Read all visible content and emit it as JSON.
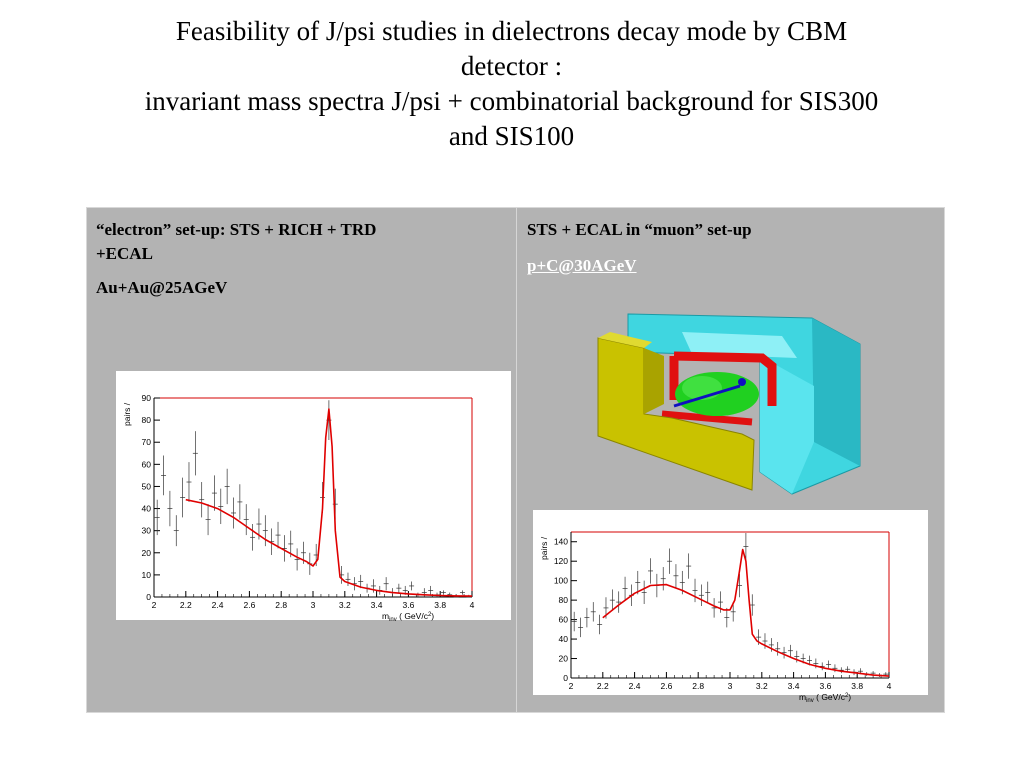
{
  "title": {
    "line1": "Feasibility of J/psi studies in dielectrons decay mode   by CBM",
    "line2": "detector :",
    "line3": "invariant mass spectra J/psi + combinatorial background for SIS300",
    "line4": "and SIS100"
  },
  "left_cell": {
    "heading_line1": "“electron” set-up: STS + RICH + TRD",
    "heading_line2": "+ECAL",
    "reaction": "Au+Au@25AGeV"
  },
  "right_cell": {
    "heading": "STS + ECAL in “muon” set-up",
    "reaction_link": "p+C@30AGeV"
  },
  "colors": {
    "cell_bg": "#b3b3b3",
    "fit_curve": "#e00000",
    "frame": "#d40000",
    "points": "#333333",
    "detector_cyan": "#3fd6e0",
    "detector_yellow": "#c9c200",
    "detector_red": "#e01010",
    "detector_green": "#20d020",
    "detector_blue": "#1010c0"
  },
  "chart_data": [
    {
      "type": "scatter",
      "ylabel": "pairs /",
      "xlabel_main": "m",
      "xlabel_sub": "inv",
      "xlabel_unit": " ( GeV/c",
      "xlabel_sup": "2",
      "xlabel_end": ")",
      "xlim": [
        2,
        4
      ],
      "ylim": [
        0,
        90
      ],
      "xticks": [
        "2",
        "2.2",
        "2.4",
        "2.6",
        "2.8",
        "3",
        "3.2",
        "3.4",
        "3.6",
        "3.8",
        "4"
      ],
      "yticks": [
        "0",
        "10",
        "20",
        "30",
        "40",
        "50",
        "60",
        "70",
        "80",
        "90"
      ],
      "fit": {
        "x": [
          2.2,
          2.3,
          2.4,
          2.5,
          2.6,
          2.7,
          2.8,
          2.9,
          2.96,
          3.0,
          3.03,
          3.06,
          3.08,
          3.1,
          3.12,
          3.14,
          3.17,
          3.2,
          3.3,
          3.4,
          3.5,
          3.6,
          3.7,
          3.8,
          3.9,
          4.0
        ],
        "y": [
          44,
          42.5,
          40,
          36,
          31,
          26,
          22,
          18,
          16,
          14,
          17,
          40,
          72,
          85,
          68,
          30,
          9,
          7,
          4.5,
          3,
          2,
          1.4,
          1,
          0.7,
          0.5,
          0.4
        ]
      },
      "points": {
        "x": [
          2.02,
          2.06,
          2.1,
          2.14,
          2.18,
          2.22,
          2.26,
          2.3,
          2.34,
          2.38,
          2.42,
          2.46,
          2.5,
          2.54,
          2.58,
          2.62,
          2.66,
          2.7,
          2.74,
          2.78,
          2.82,
          2.86,
          2.9,
          2.94,
          2.98,
          3.02,
          3.06,
          3.1,
          3.14,
          3.18,
          3.22,
          3.26,
          3.3,
          3.34,
          3.38,
          3.42,
          3.46,
          3.5,
          3.54,
          3.58,
          3.62,
          3.66,
          3.7,
          3.74,
          3.78,
          3.82,
          3.86,
          3.9,
          3.94,
          3.98
        ],
        "y": [
          36,
          55,
          40,
          30,
          45,
          52,
          65,
          44,
          35,
          47,
          41,
          50,
          38,
          43,
          35,
          27,
          33,
          30,
          25,
          28,
          22,
          24,
          17,
          20,
          15,
          19,
          45,
          80,
          42,
          10,
          8,
          6,
          7,
          4,
          5,
          3,
          6,
          2,
          4,
          3,
          5,
          1,
          2,
          3,
          1,
          2,
          1,
          0,
          2,
          0
        ],
        "err": [
          8,
          9,
          8,
          7,
          9,
          9,
          10,
          8,
          7,
          8,
          8,
          8,
          7,
          8,
          7,
          6,
          7,
          7,
          6,
          6,
          6,
          6,
          5,
          5,
          5,
          5,
          7,
          9,
          7,
          4,
          3,
          3,
          3,
          2,
          3,
          2,
          3,
          2,
          2,
          2,
          2,
          1,
          2,
          2,
          1,
          1,
          1,
          1,
          1,
          1
        ]
      }
    },
    {
      "type": "scatter",
      "ylabel": "pairs /",
      "xlabel_main": "m",
      "xlabel_sub": "inv",
      "xlabel_unit": " ( GeV/c",
      "xlabel_sup": "2",
      "xlabel_end": ")",
      "xlim": [
        2,
        4
      ],
      "ylim": [
        0,
        150
      ],
      "xticks": [
        "2",
        "2.2",
        "2.4",
        "2.6",
        "2.8",
        "3",
        "3.2",
        "3.4",
        "3.6",
        "3.8",
        "4"
      ],
      "yticks": [
        "0",
        "20",
        "40",
        "60",
        "80",
        "100",
        "120",
        "140"
      ],
      "fit": {
        "x": [
          2.2,
          2.3,
          2.4,
          2.5,
          2.6,
          2.7,
          2.8,
          2.9,
          2.96,
          3.0,
          3.03,
          3.06,
          3.08,
          3.1,
          3.12,
          3.14,
          3.17,
          3.2,
          3.3,
          3.4,
          3.5,
          3.6,
          3.7,
          3.8,
          3.9,
          4.0
        ],
        "y": [
          62,
          75,
          87,
          95,
          96,
          90,
          82,
          74,
          70,
          70,
          80,
          110,
          132,
          120,
          80,
          45,
          38,
          35,
          27,
          20,
          14,
          10,
          7,
          5,
          3,
          2
        ]
      },
      "points": {
        "x": [
          2.02,
          2.06,
          2.1,
          2.14,
          2.18,
          2.22,
          2.26,
          2.3,
          2.34,
          2.38,
          2.42,
          2.46,
          2.5,
          2.54,
          2.58,
          2.62,
          2.66,
          2.7,
          2.74,
          2.78,
          2.82,
          2.86,
          2.9,
          2.94,
          2.98,
          3.02,
          3.06,
          3.1,
          3.14,
          3.18,
          3.22,
          3.26,
          3.3,
          3.34,
          3.38,
          3.42,
          3.46,
          3.5,
          3.54,
          3.58,
          3.62,
          3.66,
          3.7,
          3.74,
          3.78,
          3.82,
          3.86,
          3.9,
          3.94,
          3.98
        ],
        "y": [
          58,
          52,
          62,
          68,
          55,
          72,
          80,
          78,
          92,
          85,
          98,
          88,
          110,
          95,
          102,
          120,
          105,
          98,
          115,
          90,
          85,
          88,
          72,
          78,
          62,
          68,
          95,
          135,
          75,
          42,
          38,
          34,
          30,
          26,
          28,
          22,
          20,
          18,
          15,
          12,
          14,
          10,
          8,
          9,
          6,
          7,
          4,
          5,
          3,
          4
        ],
        "err": [
          10,
          10,
          10,
          10,
          10,
          11,
          11,
          11,
          12,
          11,
          12,
          12,
          13,
          12,
          12,
          13,
          12,
          12,
          13,
          12,
          11,
          11,
          10,
          11,
          10,
          10,
          12,
          14,
          11,
          8,
          8,
          7,
          7,
          6,
          6,
          6,
          5,
          5,
          5,
          4,
          4,
          4,
          3,
          3,
          3,
          3,
          2,
          2,
          2,
          2
        ]
      }
    }
  ]
}
